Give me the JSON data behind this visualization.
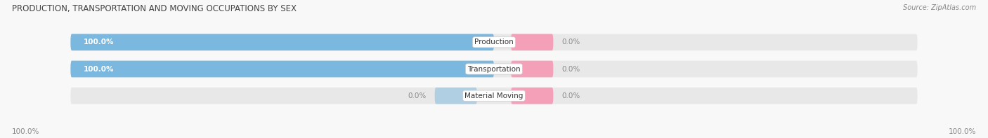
{
  "title": "PRODUCTION, TRANSPORTATION AND MOVING OCCUPATIONS BY SEX",
  "source": "Source: ZipAtlas.com",
  "categories": [
    "Production",
    "Transportation",
    "Material Moving"
  ],
  "male_values": [
    100.0,
    100.0,
    0.0
  ],
  "female_values": [
    0.0,
    0.0,
    0.0
  ],
  "male_color": "#7ab8e0",
  "female_color": "#f4a0b8",
  "bg_bar_color": "#e8e8e8",
  "male_label_left_pct": [
    "100.0%",
    "100.0%",
    "0.0%"
  ],
  "female_label_right_pct": [
    "0.0%",
    "0.0%",
    "0.0%"
  ],
  "bottom_left_label": "100.0%",
  "bottom_right_label": "100.0%",
  "figsize": [
    14.06,
    1.97
  ],
  "dpi": 100,
  "title_fontsize": 8.5,
  "label_fontsize": 7.5,
  "source_fontsize": 7.0,
  "bg_fig_color": "#f8f8f8"
}
